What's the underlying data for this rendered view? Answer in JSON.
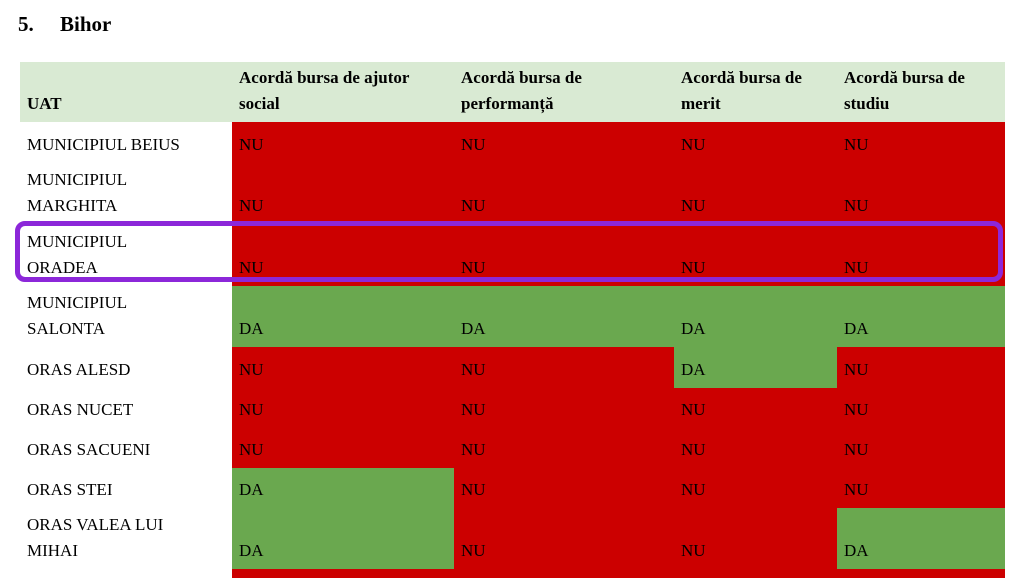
{
  "title": {
    "number": "5.",
    "name": "Bihor"
  },
  "table": {
    "columns": [
      "UAT",
      "Acordă bursa de ajutor\nsocial",
      "Acordă bursa de\nperformanță",
      "Acordă bursa de\nmerit",
      "Acordă bursa de\nstudiu"
    ],
    "rows": [
      {
        "uat": "MUNICIPIUL BEIUS",
        "values": [
          "NU",
          "NU",
          "NU",
          "NU"
        ],
        "cell_states": [
          "nu",
          "nu",
          "nu",
          "nu"
        ],
        "highlighted": false
      },
      {
        "uat": "MUNICIPIUL\nMARGHITA",
        "values": [
          "NU",
          "NU",
          "NU",
          "NU"
        ],
        "cell_states": [
          "nu",
          "nu",
          "nu",
          "nu"
        ],
        "highlighted": false
      },
      {
        "uat": "MUNICIPIUL\nORADEA",
        "values": [
          "NU",
          "NU",
          "NU",
          "NU"
        ],
        "cell_states": [
          "nu",
          "nu",
          "nu",
          "nu"
        ],
        "highlighted": true
      },
      {
        "uat": "MUNICIPIUL\nSALONTA",
        "values": [
          "DA",
          "DA",
          "DA",
          "DA"
        ],
        "cell_states": [
          "da",
          "da",
          "da",
          "da"
        ],
        "highlighted": false
      },
      {
        "uat": "ORAS ALESD",
        "values": [
          "NU",
          "NU",
          "DA",
          "NU"
        ],
        "cell_states": [
          "nu",
          "nu",
          "da",
          "nu"
        ],
        "highlighted": false
      },
      {
        "uat": "ORAS NUCET",
        "values": [
          "NU",
          "NU",
          "NU",
          "NU"
        ],
        "cell_states": [
          "nu",
          "nu",
          "nu",
          "nu"
        ],
        "highlighted": false
      },
      {
        "uat": "ORAS SACUENI",
        "values": [
          "NU",
          "NU",
          "NU",
          "NU"
        ],
        "cell_states": [
          "nu",
          "nu",
          "nu",
          "nu"
        ],
        "highlighted": false
      },
      {
        "uat": "ORAS STEI",
        "values": [
          "DA",
          "NU",
          "NU",
          "NU"
        ],
        "cell_states": [
          "da",
          "nu",
          "nu",
          "nu"
        ],
        "highlighted": false
      },
      {
        "uat": "ORAS VALEA LUI\nMIHAI",
        "values": [
          "DA",
          "NU",
          "NU",
          "DA"
        ],
        "cell_states": [
          "da",
          "nu",
          "nu",
          "da"
        ],
        "highlighted": false
      },
      {
        "uat": "",
        "values": [
          "",
          "",
          "",
          ""
        ],
        "cell_states": [
          "nu",
          "nu",
          "nu",
          "nu"
        ],
        "highlighted": false,
        "partial": true
      }
    ],
    "value_labels": {
      "yes": "DA",
      "no": "NU"
    },
    "colors": {
      "da_bg": "#6aa84f",
      "nu_bg": "#cc0000",
      "header_bg": "#d9ead3",
      "uat_bg": "#ffffff",
      "highlight": "#8c27d9",
      "text": "#000000"
    }
  }
}
